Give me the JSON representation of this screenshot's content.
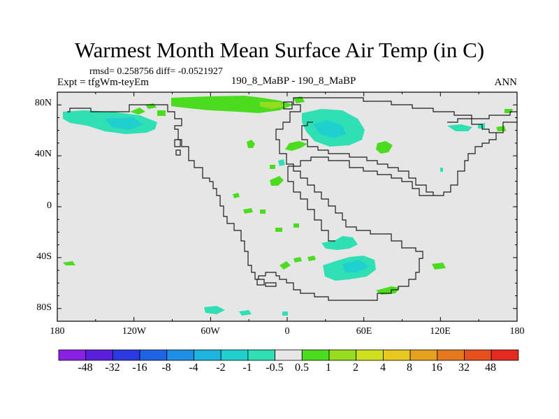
{
  "title": "Warmest Month Mean Surface Air Temp (in C)",
  "stats": "rmsd= 0.258756 diff= -0.0521927",
  "left_label": "Expt = tfgWm-teyEm",
  "center_label": "190_8_MaBP - 190_8_MaBP",
  "right_label": "ANN",
  "map": {
    "background_color": "#e6e6e6",
    "lat_ticks": [
      "80N",
      "40N",
      "0",
      "40S",
      "80S"
    ],
    "lon_ticks": [
      "180",
      "120W",
      "60W",
      "0",
      "60E",
      "120E",
      "180"
    ]
  },
  "colorbar": {
    "colors": [
      "#8a1fe6",
      "#5a1fdc",
      "#2a3ae0",
      "#1f64e6",
      "#1f8fe6",
      "#1fb4e0",
      "#20d0d0",
      "#2ee0b4",
      "#e6e6e6",
      "#4cdc1f",
      "#96dc1f",
      "#cde01f",
      "#e6c81f",
      "#e6a21f",
      "#e6781f",
      "#e6501f",
      "#e62a1f"
    ],
    "labels": [
      "-48",
      "-32",
      "-16",
      "-8",
      "-4",
      "-2",
      "-1",
      "-0.5",
      "0.5",
      "1",
      "2",
      "4",
      "8",
      "16",
      "32",
      "48"
    ]
  }
}
